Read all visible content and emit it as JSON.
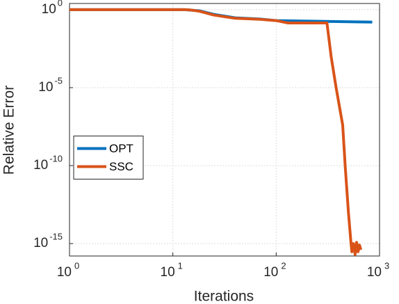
{
  "chart_data": {
    "type": "line",
    "xlabel": "Iterations",
    "ylabel": "Relative Error",
    "xscale": "log",
    "yscale": "log",
    "grid": true,
    "legend": "west",
    "xlim": [
      1,
      1000
    ],
    "ylim": [
      1.6e-16,
      2.5
    ],
    "xticks": [
      {
        "value": 1,
        "label": "10",
        "exponent": "0"
      },
      {
        "value": 10,
        "label": "10",
        "exponent": "1"
      },
      {
        "value": 100,
        "label": "10",
        "exponent": "2"
      },
      {
        "value": 1000,
        "label": "10",
        "exponent": "3"
      }
    ],
    "yticks": [
      {
        "value": 1,
        "label": "10",
        "exponent": "0"
      },
      {
        "value": 1e-05,
        "label": "10",
        "exponent": "-5"
      },
      {
        "value": 1e-10,
        "label": "10",
        "exponent": "-10"
      },
      {
        "value": 1e-15,
        "label": "10",
        "exponent": "-15"
      }
    ],
    "series": [
      {
        "name": "OPT",
        "color": "#0072BD",
        "x": [
          1,
          13,
          18,
          25,
          40,
          70,
          100,
          850
        ],
        "values": [
          1,
          1,
          0.85,
          0.5,
          0.3,
          0.25,
          0.2,
          0.16
        ]
      },
      {
        "name": "SSC",
        "color": "#D95319",
        "x": [
          1,
          13,
          15,
          18,
          25,
          40,
          70,
          100,
          130,
          310,
          340,
          380,
          440,
          465,
          500,
          530,
          540,
          560,
          580,
          600,
          620,
          640,
          660
        ],
        "values": [
          1,
          1,
          0.95,
          0.8,
          0.45,
          0.28,
          0.24,
          0.2,
          0.14,
          0.14,
          0.001,
          1e-05,
          4e-08,
          1e-10,
          1e-13,
          1e-15,
          3e-16,
          1e-15,
          2e-16,
          1.2e-15,
          3e-16,
          8e-16,
          4e-16
        ]
      }
    ]
  }
}
